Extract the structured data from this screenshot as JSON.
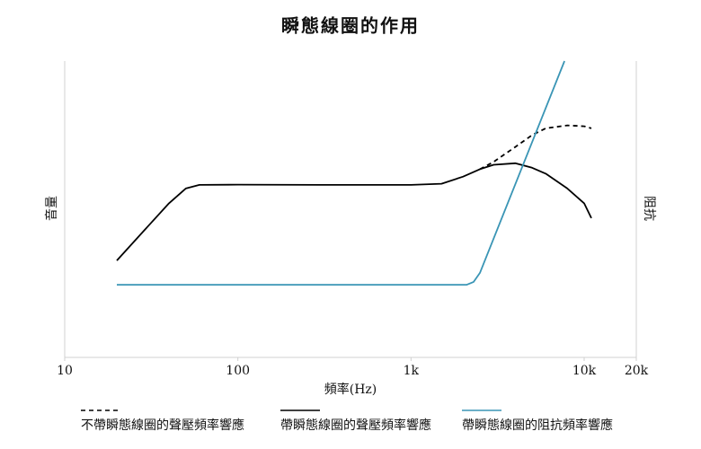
{
  "chart_data": {
    "type": "line",
    "title": "瞬態線圈的作用",
    "x_label": "頻率(Hz)",
    "y_label": "音量",
    "y2_label": "阻抗",
    "x_scale": "log",
    "xlim": [
      10,
      20000
    ],
    "xticks": [
      10,
      100,
      {
        "value": 1000,
        "label": "1k"
      },
      {
        "value": 10000,
        "label": "10k"
      },
      {
        "value": 20000,
        "label": "20k"
      }
    ],
    "ylim": [
      0,
      100
    ],
    "y2lim": [
      0,
      100
    ],
    "series": [
      {
        "name": "不帶瞬態線圈的聲壓頻率響應",
        "color": "#000000",
        "line_style": "dashed",
        "x": [
          2500,
          3000,
          4000,
          5000,
          6000,
          8000,
          10000,
          11000
        ],
        "values": [
          63.5,
          66,
          71,
          75,
          77.3,
          78.3,
          78,
          77.3
        ]
      },
      {
        "name": "帶瞬態線圈的聲壓頻率響應",
        "color": "#000000",
        "line_style": "solid",
        "x": [
          20,
          30,
          40,
          50,
          60,
          100,
          300,
          1000,
          1500,
          2000,
          2500,
          3000,
          4000,
          5000,
          6000,
          8000,
          10000,
          11000
        ],
        "values": [
          32.7,
          44,
          52,
          57,
          58.2,
          58.3,
          58.2,
          58.2,
          58.6,
          61,
          63.5,
          65,
          65.5,
          64,
          62,
          57,
          52,
          47
        ]
      },
      {
        "name": "帶瞬態線圈的阻抗頻率響應",
        "color": "#3a95b5",
        "line_style": "solid",
        "axis": "y2",
        "x": [
          20,
          2100,
          2300,
          2500,
          7700
        ],
        "values": [
          24.5,
          24.5,
          25.5,
          28.5,
          100
        ]
      }
    ]
  }
}
